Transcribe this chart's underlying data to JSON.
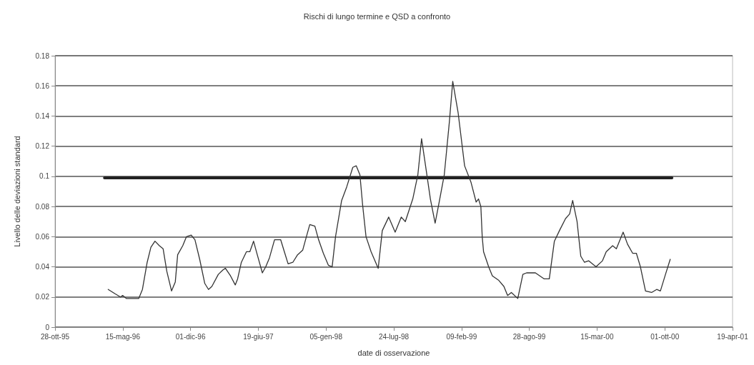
{
  "chart_data": {
    "type": "line",
    "title": "Rischi di lungo termine e QSD a confronto",
    "xlabel": "date di osservazione",
    "ylabel": "Livello delle deviazioni standard",
    "xlim": [
      "1995-10-28",
      "2001-04-19"
    ],
    "xticks": [
      {
        "value": "1995-10-28",
        "label": "28-ott-95"
      },
      {
        "value": "1996-05-15",
        "label": "15-mag-96"
      },
      {
        "value": "1996-12-01",
        "label": "01-dic-96"
      },
      {
        "value": "1997-06-19",
        "label": "19-giu-97"
      },
      {
        "value": "1998-01-05",
        "label": "05-gen-98"
      },
      {
        "value": "1998-07-24",
        "label": "24-lug-98"
      },
      {
        "value": "1999-02-09",
        "label": "09-feb-99"
      },
      {
        "value": "1999-08-28",
        "label": "28-ago-99"
      },
      {
        "value": "2000-03-15",
        "label": "15-mar-00"
      },
      {
        "value": "2000-10-01",
        "label": "01-ott-00"
      },
      {
        "value": "2001-04-19",
        "label": "19-apr-01"
      }
    ],
    "ylim": [
      0,
      0.18
    ],
    "yticks": [
      0,
      0.02,
      0.04,
      0.06,
      0.08,
      0.1,
      0.12,
      0.14,
      0.16,
      0.18
    ],
    "grid": "y",
    "marker": "none",
    "line_style": "solid",
    "series": [
      {
        "color": "#333333",
        "x": [
          "1996-04-02",
          "1996-04-23",
          "1996-05-08",
          "1996-05-15",
          "1996-05-26",
          "1996-06-13",
          "1996-07-01",
          "1996-07-12",
          "1996-07-26",
          "1996-08-06",
          "1996-08-18",
          "1996-08-31",
          "1996-09-11",
          "1996-09-22",
          "1996-10-06",
          "1996-10-17",
          "1996-10-24",
          "1996-11-08",
          "1996-11-19",
          "1996-12-03",
          "1996-12-14",
          "1996-12-28",
          "1997-01-12",
          "1997-01-23",
          "1997-02-02",
          "1997-02-21",
          "1997-03-07",
          "1997-03-14",
          "1997-03-29",
          "1997-04-12",
          "1997-04-19",
          "1997-04-30",
          "1997-05-15",
          "1997-05-25",
          "1997-06-05",
          "1997-06-16",
          "1997-07-01",
          "1997-07-11",
          "1997-07-22",
          "1997-08-06",
          "1997-08-24",
          "1997-09-04",
          "1997-09-15",
          "1997-09-29",
          "1997-10-13",
          "1997-10-28",
          "1997-11-08",
          "1997-11-18",
          "1997-12-03",
          "1997-12-14",
          "1997-12-28",
          "1998-01-12",
          "1998-01-23",
          "1998-02-02",
          "1998-02-20",
          "1998-03-07",
          "1998-03-25",
          "1998-04-04",
          "1998-04-15",
          "1998-04-23",
          "1998-05-03",
          "1998-05-18",
          "1998-06-08",
          "1998-06-20",
          "1998-07-09",
          "1998-07-28",
          "1998-08-15",
          "1998-08-27",
          "1998-09-18",
          "1998-10-03",
          "1998-10-14",
          "1998-10-29",
          "1998-11-09",
          "1998-11-23",
          "1998-12-05",
          "1998-12-20",
          "1999-01-04",
          "1999-01-14",
          "1999-01-30",
          "1999-02-18",
          "1999-03-09",
          "1999-03-24",
          "1999-03-31",
          "1999-04-07",
          "1999-04-11",
          "1999-04-15",
          "1999-04-30",
          "1999-05-11",
          "1999-05-30",
          "1999-06-14",
          "1999-06-25",
          "1999-07-06",
          "1999-07-25",
          "1999-08-09",
          "1999-08-20",
          "1999-09-15",
          "1999-10-11",
          "1999-10-26",
          "1999-11-10",
          "1999-11-25",
          "1999-12-13",
          "1999-12-25",
          "2000-01-03",
          "2000-01-16",
          "2000-01-27",
          "2000-02-07",
          "2000-02-19",
          "2000-03-12",
          "2000-03-31",
          "2000-04-11",
          "2000-04-30",
          "2000-05-11",
          "2000-05-31",
          "2000-06-13",
          "2000-06-28",
          "2000-07-09",
          "2000-07-21",
          "2000-08-05",
          "2000-08-23",
          "2000-09-07",
          "2000-09-18",
          "2000-10-03",
          "2000-10-17"
        ],
        "values": [
          0.025,
          0.022,
          0.02,
          0.021,
          0.019,
          0.019,
          0.019,
          0.025,
          0.043,
          0.053,
          0.057,
          0.054,
          0.052,
          0.037,
          0.024,
          0.03,
          0.048,
          0.054,
          0.06,
          0.061,
          0.058,
          0.045,
          0.029,
          0.025,
          0.027,
          0.035,
          0.038,
          0.039,
          0.034,
          0.028,
          0.032,
          0.043,
          0.05,
          0.05,
          0.057,
          0.048,
          0.036,
          0.04,
          0.046,
          0.058,
          0.058,
          0.05,
          0.042,
          0.043,
          0.048,
          0.051,
          0.06,
          0.068,
          0.067,
          0.058,
          0.049,
          0.041,
          0.04,
          0.06,
          0.084,
          0.093,
          0.106,
          0.107,
          0.101,
          0.081,
          0.06,
          0.05,
          0.039,
          0.064,
          0.073,
          0.063,
          0.073,
          0.07,
          0.085,
          0.101,
          0.125,
          0.102,
          0.085,
          0.069,
          0.083,
          0.101,
          0.136,
          0.163,
          0.142,
          0.107,
          0.096,
          0.083,
          0.085,
          0.08,
          0.06,
          0.05,
          0.04,
          0.034,
          0.031,
          0.027,
          0.021,
          0.023,
          0.019,
          0.035,
          0.036,
          0.036,
          0.032,
          0.032,
          0.057,
          0.064,
          0.072,
          0.075,
          0.084,
          0.07,
          0.047,
          0.043,
          0.044,
          0.04,
          0.044,
          0.05,
          0.054,
          0.052,
          0.063,
          0.055,
          0.049,
          0.049,
          0.04,
          0.024,
          0.023,
          0.025,
          0.024,
          0.035,
          0.045
        ]
      },
      {
        "color": "#222222",
        "x": [
          "1996-03-22",
          "2000-10-22"
        ],
        "values": [
          0.099,
          0.099
        ]
      }
    ]
  }
}
